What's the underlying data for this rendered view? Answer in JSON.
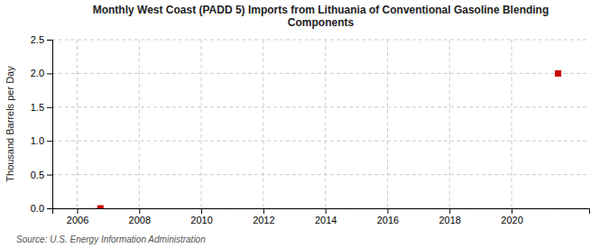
{
  "chart_data": {
    "type": "scatter",
    "title": "Monthly West Coast (PADD 5) Imports from Lithuania of Conventional Gasoline Blending\nComponents",
    "y_label": "Thousand Barrels per Day",
    "annotations": [
      "Source: U.S. Energy Information Administration"
    ],
    "x": [
      2006.75,
      2021.5
    ],
    "values": [
      0.0,
      2.0
    ],
    "color": "#cc0000",
    "marker": "square",
    "xlim": [
      2005.2,
      2022.5
    ],
    "ylim": [
      0.0,
      2.5
    ],
    "xticks": [
      2006,
      2008,
      2010,
      2012,
      2014,
      2016,
      2018,
      2020
    ],
    "yticks": [
      {
        "value": 0.0,
        "label": "0.0"
      },
      0.5,
      {
        "value": 1.0,
        "label": "1.0"
      },
      1.5,
      {
        "value": 2.0,
        "label": "2.0"
      },
      2.5
    ],
    "grid": true
  }
}
